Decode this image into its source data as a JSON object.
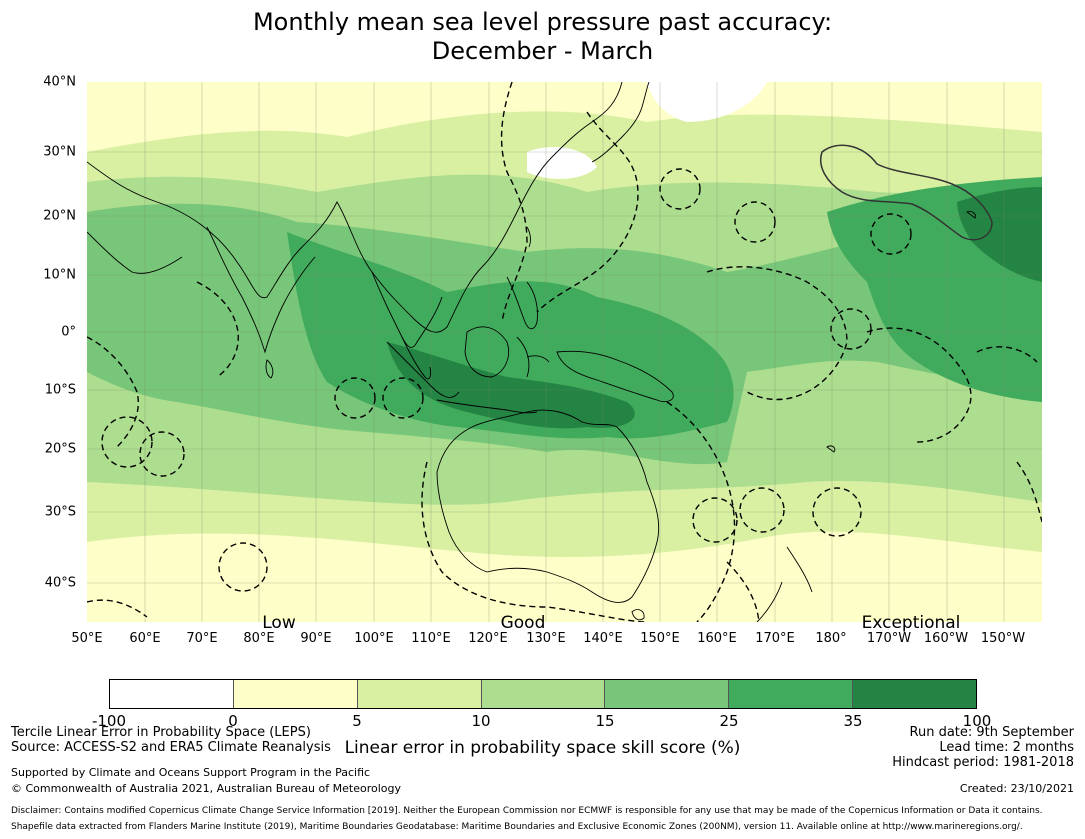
{
  "title_line1": "Monthly mean sea level pressure past accuracy:",
  "title_line2": "December - March",
  "map": {
    "lat_labels": [
      "40°N",
      "30°N",
      "20°N",
      "10°N",
      "0°",
      "10°S",
      "20°S",
      "30°S",
      "40°S"
    ],
    "lon_labels": [
      "50°E",
      "60°E",
      "70°E",
      "80°E",
      "90°E",
      "100°E",
      "110°E",
      "120°E",
      "130°E",
      "140°E",
      "150°E",
      "160°E",
      "170°E",
      "180°",
      "170°W",
      "160°W",
      "150°W"
    ],
    "skill_labels": [
      "Low",
      "Good",
      "Exceptional"
    ],
    "colors": {
      "lt0": "#ffffff",
      "c0_5": "#fefec8",
      "c5_10": "#d9f0a3",
      "c10_15": "#addd8e",
      "c15_25": "#78c679",
      "c25_35": "#41ab5d",
      "c35_100": "#238443"
    }
  },
  "colorbar": {
    "ticks": [
      "-100",
      "0",
      "5",
      "10",
      "15",
      "25",
      "35",
      "100"
    ],
    "label": "Linear error in probability space skill score (%)"
  },
  "footer": {
    "leps": "Tercile Linear Error in Probability Space (LEPS)",
    "source": "Source: ACCESS-S2 and ERA5 Climate Reanalysis",
    "supported": "Supported by Climate and Oceans Support Program in the Pacific",
    "copyright": "© Commonwealth of Australia 2021, Australian Bureau of Meteorology",
    "run_date": "Run date: 9th September",
    "lead_time": "Lead time: 2 months",
    "hindcast": "Hindcast period: 1981-2018",
    "created": "Created: 23/10/2021",
    "disclaimer": "Disclaimer: Contains modified Copernicus Climate Change Service Information [2019]. Neither the European Commission nor ECMWF is responsible for any use that may be made of the Copernicus Information or Data it contains.",
    "shapefile": "Shapefile data extracted from Flanders Marine Institute (2019), Maritime Boundaries Geodatabase: Maritime Boundaries and Exclusive Economic Zones (200NM), version 11. Available online at http://www.marineregions.org/."
  }
}
